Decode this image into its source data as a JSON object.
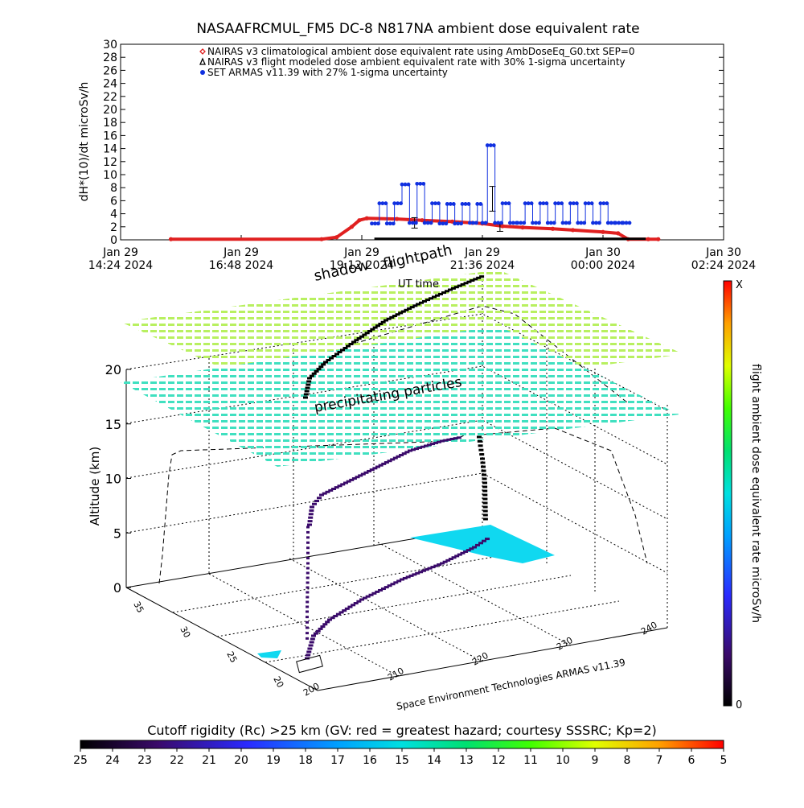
{
  "chart_data": [
    {
      "type": "line",
      "title": "NASAAFRCMUL_FM5 DC-8   N817NA ambient dose equivalent rate",
      "ylabel": "dH*(10)/dt microSv/h",
      "xlabel": "UT time",
      "ylim": [
        0,
        30
      ],
      "yticks": [
        0,
        2,
        4,
        6,
        8,
        10,
        12,
        14,
        16,
        18,
        20,
        22,
        24,
        26,
        28,
        30
      ],
      "xlim_hours": [
        0,
        12
      ],
      "xticks": [
        {
          "l1": "Jan 29",
          "l2": "14:24 2024",
          "t": 0
        },
        {
          "l1": "Jan 29",
          "l2": "16:48 2024",
          "t": 2.4
        },
        {
          "l1": "Jan 29",
          "l2": "19:12 2024",
          "t": 4.8
        },
        {
          "l1": "Jan 29",
          "l2": "21:36 2024",
          "t": 7.2
        },
        {
          "l1": "Jan 30",
          "l2": "00:00 2024",
          "t": 9.6
        },
        {
          "l1": "Jan 30",
          "l2": "02:24 2024",
          "t": 12.0
        }
      ],
      "legend": [
        {
          "text": "NAIRAS v3 climatological ambient dose equivalent rate using AmbDoseEq_G0.txt SEP=0",
          "color": "#e02020",
          "marker": "diamond"
        },
        {
          "text": "NAIRAS v3 flight modeled dose ambient equivalent rate with 30% 1-sigma uncertainty",
          "color": "#000000",
          "marker": "triangle"
        },
        {
          "text": "SET ARMAS v11.39 with 27% 1-sigma uncertainty",
          "color": "#1030e0",
          "marker": "dot"
        }
      ],
      "legend_position": "top-center",
      "series": [
        {
          "name": "NAIRAS v3 climatological ambient dose equivalent rate using AmbDoseEq_G0.txt SEP=0",
          "color": "#e02020",
          "x": [
            1.0,
            4.0,
            4.3,
            4.6,
            4.75,
            4.9,
            5.5,
            6.0,
            6.6,
            7.0,
            7.2,
            7.6,
            8.0,
            8.6,
            9.0,
            9.6,
            9.9,
            10.1,
            10.5,
            10.7
          ],
          "y": [
            0.1,
            0.1,
            0.4,
            2.0,
            3.0,
            3.3,
            3.2,
            3.0,
            2.8,
            2.6,
            2.5,
            2.1,
            1.9,
            1.7,
            1.5,
            1.2,
            1.0,
            0.1,
            0.1,
            0.1
          ]
        },
        {
          "name": "SET ARMAS v11.39 with 27% 1-sigma uncertainty",
          "color": "#1030e0",
          "x": [
            5.0,
            5.15,
            5.3,
            5.45,
            5.6,
            5.75,
            5.9,
            6.05,
            6.2,
            6.35,
            6.5,
            6.65,
            6.8,
            6.95,
            7.1,
            7.2,
            7.3,
            7.45,
            7.6,
            7.75,
            7.9,
            8.05,
            8.2,
            8.35,
            8.5,
            8.65,
            8.8,
            8.95,
            9.1,
            9.25,
            9.4,
            9.55,
            9.7,
            9.85,
            10.0
          ],
          "y": [
            2.5,
            5.6,
            2.5,
            5.6,
            8.5,
            2.6,
            8.6,
            2.6,
            5.6,
            2.5,
            5.5,
            2.5,
            5.5,
            2.6,
            5.5,
            2.6,
            14.5,
            2.6,
            5.6,
            2.6,
            2.6,
            5.6,
            2.6,
            5.6,
            2.6,
            5.6,
            2.6,
            5.6,
            2.6,
            5.6,
            2.6,
            5.6,
            2.6,
            2.6,
            2.6
          ]
        }
      ],
      "black_series": {
        "name": "NAIRAS v3 flight modeled dose ambient equivalent rate with 30% 1-sigma uncertainty",
        "x_start": 5.05,
        "x_end": 10.45,
        "y": 0.15,
        "error_bars": [
          {
            "t": 5.85,
            "y": 2.6,
            "err": 0.8
          },
          {
            "t": 7.4,
            "y": 6.3,
            "err": 1.9
          },
          {
            "t": 7.55,
            "y": 1.9,
            "err": 0.6
          }
        ]
      }
    },
    {
      "type": "3d-trajectory",
      "texts": {
        "shadow": "shadow",
        "flightpath": "flightpath",
        "ut_time": "UT time",
        "precip": "precipitating particles",
        "zlabel": "Altitude (km)",
        "credit": "Space Environment Technologies ARMAS v11.39"
      },
      "zlim": [
        0,
        20
      ],
      "zticks": [
        0,
        5,
        10,
        15,
        20
      ],
      "lat_ticks": [
        35,
        30,
        25,
        20
      ],
      "lon_ticks": [
        200,
        210,
        220,
        230,
        240
      ],
      "colorbar": {
        "label": "flight ambient dose equivalent rate microSv/h",
        "top_label": "X",
        "bottom_label": "0"
      }
    },
    {
      "type": "colorbar",
      "title": "Cutoff rigidity (Rc) >25 km (GV: red = greatest hazard; courtesy SSSRC; Kp=2)",
      "ticks": [
        "25",
        "24",
        "23",
        "22",
        "21",
        "20",
        "19",
        "18",
        "17",
        "16",
        "15",
        "14",
        "13",
        "12",
        "11",
        "10",
        "9",
        "8",
        "7",
        "6",
        "5"
      ]
    }
  ]
}
